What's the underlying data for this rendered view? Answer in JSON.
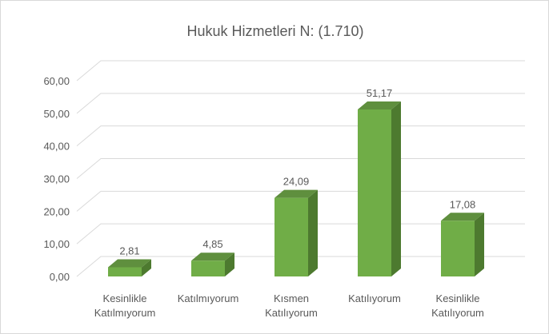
{
  "chart_data": {
    "type": "bar3d",
    "title": "Hukuk Hizmetleri N: (1.710)",
    "categories": [
      "Kesinlikle Katılmıyorum",
      "Katılmıyorum",
      "Kısmen Katılıyorum",
      "Katılıyorum",
      "Kesinlikle Katılıyorum"
    ],
    "values": [
      2.81,
      4.85,
      24.09,
      51.17,
      17.08
    ],
    "value_labels": [
      "2,81",
      "4,85",
      "24,09",
      "51,17",
      "17,08"
    ],
    "color": "#70ad47",
    "ylim": [
      0,
      60
    ],
    "yticks": [
      {
        "value": 0,
        "label": "0,00"
      },
      {
        "value": 10,
        "label": "10,00"
      },
      {
        "value": 20,
        "label": "20,00"
      },
      {
        "value": 30,
        "label": "30,00"
      },
      {
        "value": 40,
        "label": "40,00"
      },
      {
        "value": 50,
        "label": "50,00"
      },
      {
        "value": 60,
        "label": "60,00"
      }
    ],
    "grid": true
  }
}
